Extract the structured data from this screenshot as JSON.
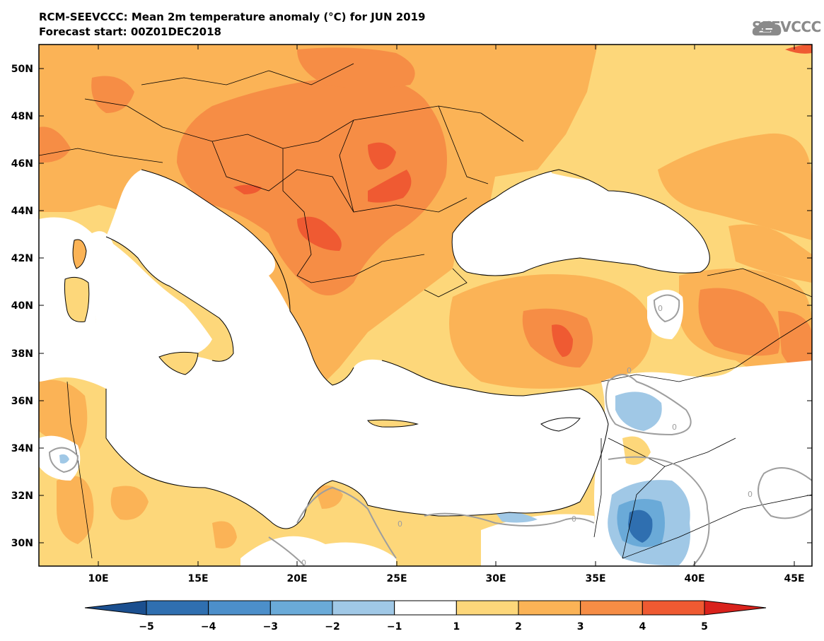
{
  "header": {
    "title": "RCM-SEEVCCC: Mean 2m temperature anomaly (°C) for JUN 2019",
    "subtitle": "Forecast start: 00Z01DEC2018",
    "logo_text": "SEEVCCC"
  },
  "map": {
    "lat_labels": [
      "50N",
      "48N",
      "46N",
      "44N",
      "42N",
      "40N",
      "38N",
      "36N",
      "34N",
      "32N",
      "30N"
    ],
    "lon_labels": [
      "10E",
      "15E",
      "20E",
      "25E",
      "30E",
      "35E",
      "40E",
      "45E"
    ],
    "contour_labels": [
      "0",
      "0",
      "0",
      "0",
      "0",
      "0",
      "0"
    ]
  },
  "colorbar": {
    "tick_labels": [
      "-5",
      "-4",
      "-3",
      "-2",
      "-1",
      "1",
      "2",
      "3",
      "4",
      "5"
    ],
    "colors": [
      "#1b4f8f",
      "#2f6fb0",
      "#4c8fca",
      "#6aaad8",
      "#a0c8e6",
      "#ffffff",
      "#fdd77a",
      "#fbb356",
      "#f68d45",
      "#ef5a32",
      "#d9221c"
    ]
  }
}
